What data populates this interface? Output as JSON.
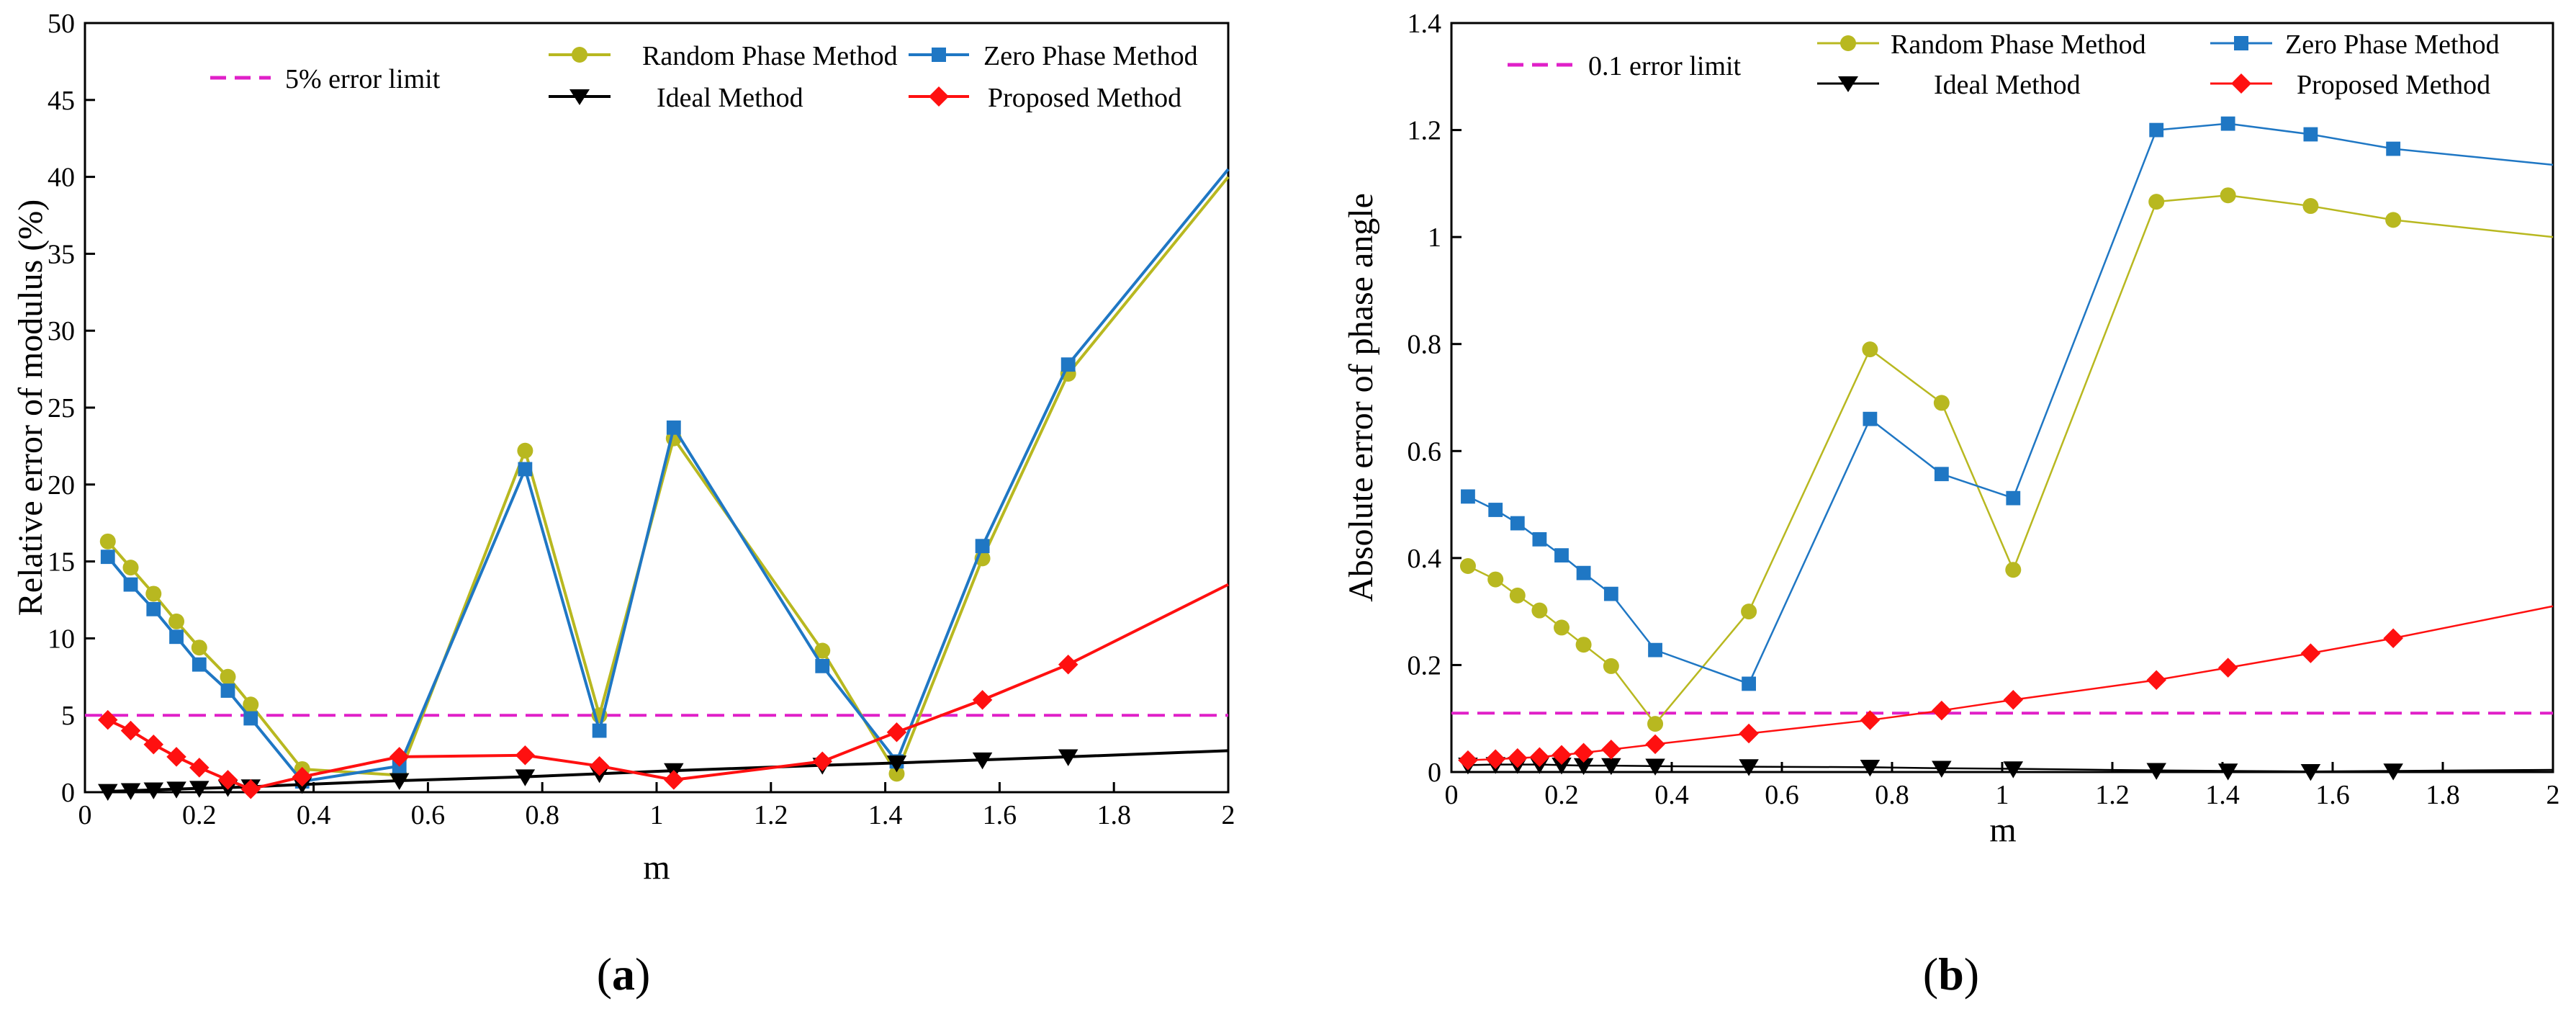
{
  "chart_data": [
    {
      "type": "line",
      "panel_label": "(a)",
      "panel_letter": "a",
      "xlabel": "m",
      "ylabel": "Relative error of modulus (%)",
      "xlim": [
        0,
        2
      ],
      "ylim": [
        0,
        50
      ],
      "xticks": [
        0,
        0.2,
        0.4,
        0.6,
        0.8,
        1,
        1.2,
        1.4,
        1.6,
        1.8,
        2
      ],
      "xtick_labels": [
        "0",
        "0.2",
        "0.4",
        "0.6",
        "0.8",
        "1",
        "1.2",
        "1.4",
        "1.6",
        "1.8",
        "2"
      ],
      "yticks": [
        0,
        5,
        10,
        15,
        20,
        25,
        30,
        35,
        40,
        45,
        50
      ],
      "ytick_labels": [
        "0",
        "5",
        "10",
        "15",
        "20",
        "25",
        "30",
        "35",
        "40",
        "45",
        "50"
      ],
      "hline": {
        "name": "5% error limit",
        "value": 5,
        "color": "#e020c8"
      },
      "series": [
        {
          "name": "Random Phase Method",
          "color": "#b8b820",
          "marker": "circle",
          "width": 4,
          "x": [
            0.04,
            0.08,
            0.12,
            0.16,
            0.2,
            0.25,
            0.29,
            0.38,
            0.55,
            0.77,
            0.9,
            1.03,
            1.29,
            1.42,
            1.57,
            1.72,
            2.0
          ],
          "y": [
            16.3,
            14.6,
            12.9,
            11.1,
            9.4,
            7.5,
            5.7,
            1.5,
            1.1,
            22.2,
            5.0,
            23.0,
            9.2,
            1.2,
            15.2,
            27.2,
            40.0
          ]
        },
        {
          "name": "Zero Phase Method",
          "color": "#1f77c4",
          "marker": "square",
          "width": 4,
          "x": [
            0.04,
            0.08,
            0.12,
            0.16,
            0.2,
            0.25,
            0.29,
            0.38,
            0.55,
            0.77,
            0.9,
            1.03,
            1.29,
            1.42,
            1.57,
            1.72,
            2.0
          ],
          "y": [
            15.3,
            13.5,
            11.9,
            10.1,
            8.3,
            6.6,
            4.8,
            0.7,
            1.7,
            21.0,
            4.0,
            23.7,
            8.2,
            2.0,
            16.0,
            27.8,
            40.5
          ]
        },
        {
          "name": "Ideal Method",
          "color": "#000000",
          "marker": "triangle-down",
          "width": 4,
          "x": [
            0.04,
            0.08,
            0.12,
            0.16,
            0.2,
            0.25,
            0.29,
            0.38,
            0.55,
            0.77,
            0.9,
            1.03,
            1.29,
            1.42,
            1.57,
            1.72,
            2.0
          ],
          "y": [
            0.05,
            0.1,
            0.15,
            0.2,
            0.25,
            0.3,
            0.35,
            0.5,
            0.75,
            1.0,
            1.2,
            1.4,
            1.75,
            1.9,
            2.1,
            2.3,
            2.7
          ]
        },
        {
          "name": "Proposed Method",
          "color": "#ff1010",
          "marker": "diamond",
          "width": 4,
          "x": [
            0.04,
            0.08,
            0.12,
            0.16,
            0.2,
            0.25,
            0.29,
            0.38,
            0.55,
            0.77,
            0.9,
            1.03,
            1.29,
            1.42,
            1.57,
            1.72,
            2.0
          ],
          "y": [
            4.7,
            4.0,
            3.1,
            2.3,
            1.6,
            0.8,
            0.2,
            1.0,
            2.3,
            2.4,
            1.7,
            0.8,
            2.0,
            3.9,
            6.0,
            8.3,
            13.5
          ]
        }
      ]
    },
    {
      "type": "line",
      "panel_label": "(b)",
      "panel_letter": "b",
      "xlabel": "m",
      "ylabel": "Absolute error of phase angle",
      "xlim": [
        0,
        2
      ],
      "ylim": [
        0,
        1.4
      ],
      "xticks": [
        0,
        0.2,
        0.4,
        0.6,
        0.8,
        1,
        1.2,
        1.4,
        1.6,
        1.8,
        2
      ],
      "xtick_labels": [
        "0",
        "0.2",
        "0.4",
        "0.6",
        "0.8",
        "1",
        "1.2",
        "1.4",
        "1.6",
        "1.8",
        "2"
      ],
      "yticks": [
        0,
        0.2,
        0.4,
        0.6,
        0.8,
        1,
        1.2,
        1.4
      ],
      "ytick_labels": [
        "0",
        "0.2",
        "0.4",
        "0.6",
        "0.8",
        "1",
        "1.2",
        "1.4"
      ],
      "hline": {
        "name": "0.1 error limit",
        "value": 0.11,
        "color": "#e020c8"
      },
      "series": [
        {
          "name": "Random Phase Method",
          "color": "#b8b820",
          "marker": "circle",
          "width": 2.5,
          "x": [
            0.03,
            0.08,
            0.12,
            0.16,
            0.2,
            0.24,
            0.29,
            0.37,
            0.54,
            0.76,
            0.89,
            1.02,
            1.28,
            1.41,
            1.56,
            1.71,
            2.0
          ],
          "y": [
            0.385,
            0.36,
            0.33,
            0.302,
            0.27,
            0.238,
            0.198,
            0.09,
            0.3,
            0.79,
            0.69,
            0.378,
            1.066,
            1.078,
            1.058,
            1.032,
            1.0
          ]
        },
        {
          "name": "Zero Phase Method",
          "color": "#1f77c4",
          "marker": "square",
          "width": 2.5,
          "x": [
            0.03,
            0.08,
            0.12,
            0.16,
            0.2,
            0.24,
            0.29,
            0.37,
            0.54,
            0.76,
            0.89,
            1.02,
            1.28,
            1.41,
            1.56,
            1.71,
            2.0
          ],
          "y": [
            0.515,
            0.49,
            0.465,
            0.435,
            0.405,
            0.372,
            0.333,
            0.228,
            0.165,
            0.66,
            0.557,
            0.512,
            1.2,
            1.212,
            1.192,
            1.165,
            1.135
          ]
        },
        {
          "name": "Ideal Method",
          "color": "#000000",
          "marker": "triangle-down",
          "width": 2.5,
          "x": [
            0.03,
            0.08,
            0.12,
            0.16,
            0.2,
            0.24,
            0.29,
            0.37,
            0.54,
            0.76,
            0.89,
            1.02,
            1.28,
            1.41,
            1.56,
            1.71,
            2.0
          ],
          "y": [
            0.013,
            0.014,
            0.014,
            0.014,
            0.013,
            0.012,
            0.012,
            0.011,
            0.01,
            0.009,
            0.007,
            0.006,
            0.003,
            0.002,
            0.001,
            0.002,
            0.004
          ]
        },
        {
          "name": "Proposed Method",
          "color": "#ff1010",
          "marker": "diamond",
          "width": 2.5,
          "x": [
            0.03,
            0.08,
            0.12,
            0.16,
            0.2,
            0.24,
            0.29,
            0.37,
            0.54,
            0.76,
            0.89,
            1.02,
            1.28,
            1.41,
            1.56,
            1.71,
            2.0
          ],
          "y": [
            0.022,
            0.024,
            0.026,
            0.028,
            0.032,
            0.036,
            0.042,
            0.052,
            0.072,
            0.097,
            0.115,
            0.135,
            0.172,
            0.195,
            0.222,
            0.25,
            0.31
          ]
        }
      ]
    }
  ]
}
